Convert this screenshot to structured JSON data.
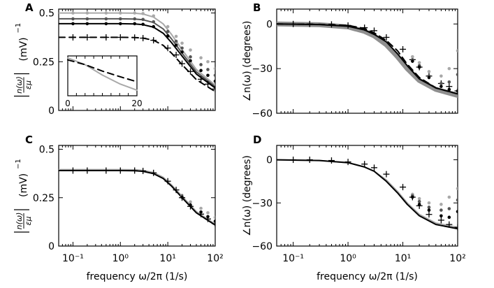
{
  "figure": {
    "shared_xlabel": "frequency ω/2π   (1/s)",
    "colors": {
      "dark": "#000000",
      "mid": "#555555",
      "light": "#a9a9a9",
      "band": "#8f8f8f"
    }
  },
  "chart_data": [
    {
      "panel": "A",
      "type": "line",
      "title": "",
      "ylabel": "|n(ω)/εμ|  (mV)⁻¹",
      "ylabel_parts": {
        "frac_num": "n(ω)",
        "frac_den": "εμ",
        "unit": "(mV)",
        "unit_exp": "−1"
      },
      "xlabel": "frequency ω/2π   (1/s)",
      "xscale": "log",
      "xlim": [
        0.05,
        100
      ],
      "ylim": [
        0,
        0.52
      ],
      "yticks": [
        0,
        0.25,
        0.5
      ],
      "ytick_labels": [
        "0",
        "0.25",
        "0.5"
      ],
      "xticks": [
        0.1,
        1,
        10,
        100
      ],
      "xtick_labels": [
        "",
        "",
        "",
        ""
      ],
      "grid": false,
      "series": [
        {
          "style": "light-line",
          "x": [
            0.05,
            1,
            2,
            3,
            5,
            8,
            12,
            20,
            40,
            100
          ],
          "y": [
            0.5,
            0.5,
            0.499,
            0.495,
            0.479,
            0.444,
            0.39,
            0.312,
            0.21,
            0.13
          ]
        },
        {
          "style": "mid-line",
          "x": [
            0.05,
            1,
            2,
            3,
            5,
            8,
            12,
            20,
            40,
            100
          ],
          "y": [
            0.47,
            0.47,
            0.469,
            0.465,
            0.451,
            0.418,
            0.367,
            0.294,
            0.198,
            0.122
          ]
        },
        {
          "style": "dark-line",
          "x": [
            0.05,
            1,
            2,
            3,
            5,
            8,
            12,
            20,
            40,
            100
          ],
          "y": [
            0.445,
            0.445,
            0.444,
            0.44,
            0.427,
            0.396,
            0.348,
            0.279,
            0.187,
            0.115
          ]
        },
        {
          "style": "dashed",
          "x": [
            0.05,
            1,
            2,
            3,
            5,
            8,
            12,
            20,
            40,
            100
          ],
          "y": [
            0.375,
            0.375,
            0.374,
            0.371,
            0.36,
            0.334,
            0.294,
            0.235,
            0.158,
            0.097
          ]
        },
        {
          "style": "dots-light",
          "x": [
            0.1,
            0.2,
            0.5,
            1,
            2,
            3,
            5,
            10,
            15,
            20,
            30,
            50,
            70,
            100
          ],
          "y": [
            0.5,
            0.5,
            0.5,
            0.5,
            0.5,
            0.497,
            0.485,
            0.43,
            0.38,
            0.345,
            0.31,
            0.27,
            0.25,
            0.215
          ]
        },
        {
          "style": "dots-mid",
          "x": [
            0.1,
            0.2,
            0.5,
            1,
            2,
            3,
            5,
            10,
            15,
            20,
            30,
            50,
            70,
            100
          ],
          "y": [
            0.47,
            0.47,
            0.47,
            0.47,
            0.47,
            0.467,
            0.455,
            0.405,
            0.355,
            0.32,
            0.275,
            0.235,
            0.21,
            0.18
          ]
        },
        {
          "style": "dots-dark",
          "x": [
            0.1,
            0.2,
            0.5,
            1,
            2,
            3,
            5,
            10,
            15,
            20,
            30,
            50,
            70,
            100
          ],
          "y": [
            0.445,
            0.445,
            0.445,
            0.445,
            0.445,
            0.442,
            0.43,
            0.382,
            0.335,
            0.3,
            0.255,
            0.205,
            0.18,
            0.15
          ]
        },
        {
          "style": "plus",
          "x": [
            0.1,
            0.2,
            0.5,
            1,
            2,
            3,
            5,
            10,
            15,
            20,
            30,
            50,
            70,
            100
          ],
          "y": [
            0.375,
            0.375,
            0.375,
            0.375,
            0.374,
            0.371,
            0.36,
            0.32,
            0.285,
            0.24,
            0.2,
            0.16,
            0.135,
            0.11
          ]
        }
      ],
      "inset": {
        "xlim": [
          0,
          20
        ],
        "xtick_labels": [
          "0",
          "20"
        ],
        "series": [
          {
            "style": "light-line",
            "x": [
              0,
              5,
              10,
              15,
              20
            ],
            "y": [
              0.95,
              0.78,
              0.52,
              0.3,
              0.14
            ]
          },
          {
            "style": "dashed",
            "x": [
              0,
              5,
              10,
              15,
              20
            ],
            "y": [
              0.9,
              0.78,
              0.62,
              0.48,
              0.35
            ]
          }
        ]
      }
    },
    {
      "panel": "B",
      "type": "line",
      "title": "",
      "ylabel": "∠n(ω)   (degrees)",
      "xlabel": "frequency ω/2π   (1/s)",
      "xscale": "log",
      "xlim": [
        0.05,
        100
      ],
      "ylim": [
        -60,
        10
      ],
      "yticks": [
        -60,
        -30,
        0
      ],
      "ytick_labels": [
        "−60",
        "−30",
        "0"
      ],
      "xticks": [
        0.1,
        1,
        10,
        100
      ],
      "xtick_labels": [
        "",
        "",
        "",
        ""
      ],
      "grid": false,
      "series": [
        {
          "style": "band",
          "x": [
            0.05,
            0.3,
            1,
            2,
            3,
            5,
            8,
            12,
            20,
            40,
            100
          ],
          "y": [
            0,
            -0.5,
            -2,
            -5,
            -8,
            -14,
            -22,
            -30,
            -38,
            -44,
            -48
          ]
        },
        {
          "style": "dark-line",
          "x": [
            0.05,
            0.3,
            1,
            2,
            3,
            5,
            8,
            12,
            20,
            40,
            100
          ],
          "y": [
            0,
            -0.4,
            -1.5,
            -4,
            -7,
            -12,
            -20,
            -28,
            -37,
            -43,
            -47
          ]
        },
        {
          "style": "dashed",
          "x": [
            0.05,
            0.3,
            1,
            2,
            3,
            5,
            8,
            12,
            20,
            40,
            100
          ],
          "y": [
            0,
            -0.3,
            -1,
            -3,
            -6,
            -11,
            -18,
            -27,
            -36,
            -43,
            -47
          ]
        },
        {
          "style": "plus",
          "x": [
            0.1,
            0.2,
            0.5,
            1,
            2,
            3,
            5,
            10,
            15,
            20,
            30,
            50,
            70,
            100
          ],
          "y": [
            0,
            0,
            -0.3,
            -1,
            -2.5,
            -4.5,
            -9,
            -17,
            -24,
            -29,
            -35,
            -40,
            -42,
            -45
          ]
        },
        {
          "style": "dots-light",
          "x": [
            15,
            20,
            30,
            50,
            70,
            100
          ],
          "y": [
            -22,
            -26,
            -32,
            -35,
            -30,
            -18
          ]
        },
        {
          "style": "dots-mid",
          "x": [
            15,
            20,
            30,
            50,
            70,
            100
          ],
          "y": [
            -24,
            -28,
            -35,
            -40,
            -39,
            -34
          ]
        },
        {
          "style": "dots-dark",
          "x": [
            15,
            20,
            30,
            50,
            70,
            100
          ],
          "y": [
            -25,
            -29,
            -36,
            -42,
            -44,
            -45
          ]
        }
      ]
    },
    {
      "panel": "C",
      "type": "line",
      "title": "",
      "ylabel": "|n(ω)/εμ|  (mV)⁻¹",
      "ylabel_parts": {
        "frac_num": "n(ω)",
        "frac_den": "εμ",
        "unit": "(mV)",
        "unit_exp": "−1"
      },
      "xlabel": "frequency ω/2π   (1/s)",
      "xscale": "log",
      "xlim": [
        0.05,
        100
      ],
      "ylim": [
        0,
        0.52
      ],
      "yticks": [
        0,
        0.25,
        0.5
      ],
      "ytick_labels": [
        "0",
        "0.25",
        "0.5"
      ],
      "xticks": [
        0.1,
        1,
        10,
        100
      ],
      "xtick_labels": [
        "10⁻¹",
        "10⁰",
        "10¹",
        "10²"
      ],
      "grid": false,
      "series": [
        {
          "style": "light-line",
          "x": [
            0.05,
            1,
            2,
            3,
            5,
            8,
            12,
            20,
            40,
            100
          ],
          "y": [
            0.395,
            0.395,
            0.394,
            0.391,
            0.38,
            0.355,
            0.316,
            0.257,
            0.178,
            0.113
          ]
        },
        {
          "style": "dark-line",
          "x": [
            0.05,
            1,
            2,
            3,
            5,
            8,
            12,
            20,
            40,
            100
          ],
          "y": [
            0.39,
            0.39,
            0.389,
            0.386,
            0.374,
            0.349,
            0.31,
            0.25,
            0.172,
            0.108
          ]
        },
        {
          "style": "dots-light",
          "x": [
            20,
            30,
            50,
            70,
            100
          ],
          "y": [
            0.262,
            0.228,
            0.195,
            0.172,
            0.148
          ]
        },
        {
          "style": "dots-dark",
          "x": [
            20,
            30,
            50,
            70,
            100
          ],
          "y": [
            0.252,
            0.212,
            0.176,
            0.152,
            0.128
          ]
        },
        {
          "style": "plus",
          "x": [
            0.1,
            0.2,
            0.5,
            1,
            2,
            3,
            5,
            10,
            15,
            20,
            30,
            50,
            70,
            100
          ],
          "y": [
            0.39,
            0.39,
            0.39,
            0.39,
            0.39,
            0.388,
            0.378,
            0.335,
            0.29,
            0.25,
            0.205,
            0.165,
            0.14,
            0.115
          ]
        }
      ]
    },
    {
      "panel": "D",
      "type": "line",
      "title": "",
      "ylabel": "∠n(ω)   (degrees)",
      "xlabel": "frequency ω/2π   (1/s)",
      "xscale": "log",
      "xlim": [
        0.05,
        100
      ],
      "ylim": [
        -60,
        10
      ],
      "yticks": [
        -60,
        -30,
        0
      ],
      "ytick_labels": [
        "−60",
        "−30",
        "0"
      ],
      "xticks": [
        0.1,
        1,
        10,
        100
      ],
      "xtick_labels": [
        "10⁻¹",
        "10⁰",
        "10¹",
        "10²"
      ],
      "grid": false,
      "series": [
        {
          "style": "light-line",
          "x": [
            0.05,
            0.3,
            1,
            2,
            3,
            5,
            8,
            12,
            20,
            40,
            100
          ],
          "y": [
            0,
            -0.5,
            -2,
            -5,
            -8,
            -14,
            -22,
            -30,
            -38,
            -44,
            -47
          ]
        },
        {
          "style": "dark-line",
          "x": [
            0.05,
            0.3,
            1,
            2,
            3,
            5,
            8,
            12,
            20,
            40,
            100
          ],
          "y": [
            0,
            -0.5,
            -2,
            -5,
            -8,
            -15,
            -23,
            -31,
            -39,
            -45,
            -48
          ]
        },
        {
          "style": "plus",
          "x": [
            0.1,
            0.2,
            0.5,
            1,
            2,
            3,
            5,
            10,
            15,
            20,
            30,
            50,
            70,
            100
          ],
          "y": [
            0,
            0,
            -0.5,
            -1.5,
            -3,
            -5.5,
            -10,
            -19,
            -26,
            -32,
            -38,
            -42,
            -45,
            -47
          ]
        },
        {
          "style": "dots-light",
          "x": [
            15,
            20,
            30,
            50,
            70,
            100
          ],
          "y": [
            -24,
            -27,
            -30,
            -31,
            -26,
            -20
          ]
        },
        {
          "style": "dots-mid",
          "x": [
            15,
            20,
            30,
            50,
            70,
            100
          ],
          "y": [
            -25,
            -29,
            -33,
            -35,
            -34,
            -28
          ]
        },
        {
          "style": "dots-dark",
          "x": [
            15,
            20,
            30,
            50,
            70,
            100
          ],
          "y": [
            -26,
            -31,
            -35,
            -39,
            -40,
            -36
          ]
        }
      ]
    }
  ]
}
